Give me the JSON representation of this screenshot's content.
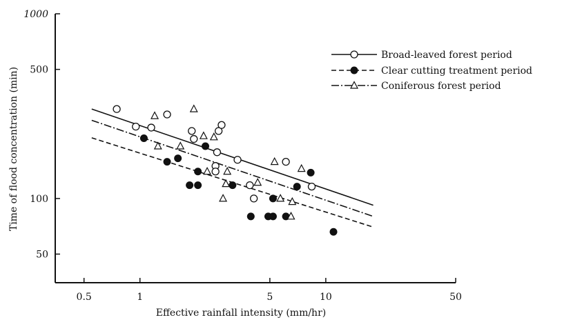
{
  "chart_data": {
    "type": "scatter",
    "title": "",
    "xlabel": "Effective rainfall intensity (mm/hr)",
    "ylabel": "Time of flood concentration (min)",
    "xscale": "log",
    "yscale": "log",
    "xlim": [
      0.35,
      50
    ],
    "ylim": [
      35,
      1000
    ],
    "xticks": [
      0.5,
      1,
      5,
      10,
      50
    ],
    "xtick_labels": [
      "0.5",
      "1",
      "5",
      "10",
      "50"
    ],
    "yticks": [
      50,
      100,
      500,
      1000
    ],
    "ytick_labels": [
      "50",
      "100",
      "500",
      "1000"
    ],
    "grid": false,
    "legend_position": "top-right",
    "series": [
      {
        "name": "Broad-leaved forest period",
        "marker": "open-circle",
        "line": "solid",
        "fit": {
          "x": [
            0.55,
            18
          ],
          "y": [
            305,
            92
          ]
        },
        "points": [
          {
            "x": 0.75,
            "y": 305
          },
          {
            "x": 0.95,
            "y": 245
          },
          {
            "x": 1.15,
            "y": 242
          },
          {
            "x": 1.4,
            "y": 285
          },
          {
            "x": 1.9,
            "y": 232
          },
          {
            "x": 1.95,
            "y": 210
          },
          {
            "x": 2.65,
            "y": 232
          },
          {
            "x": 2.75,
            "y": 250
          },
          {
            "x": 2.6,
            "y": 178
          },
          {
            "x": 2.55,
            "y": 150
          },
          {
            "x": 2.55,
            "y": 140
          },
          {
            "x": 3.35,
            "y": 162
          },
          {
            "x": 3.9,
            "y": 118
          },
          {
            "x": 4.1,
            "y": 100
          },
          {
            "x": 6.1,
            "y": 158
          },
          {
            "x": 8.4,
            "y": 116
          }
        ]
      },
      {
        "name": "Clear cutting treatment period",
        "marker": "filled-circle",
        "line": "dashed",
        "fit": {
          "x": [
            0.55,
            18
          ],
          "y": [
            213,
            70
          ]
        },
        "points": [
          {
            "x": 1.05,
            "y": 212
          },
          {
            "x": 1.4,
            "y": 158
          },
          {
            "x": 1.6,
            "y": 165
          },
          {
            "x": 1.85,
            "y": 118
          },
          {
            "x": 2.05,
            "y": 140
          },
          {
            "x": 2.05,
            "y": 118
          },
          {
            "x": 2.25,
            "y": 192
          },
          {
            "x": 3.15,
            "y": 118
          },
          {
            "x": 3.95,
            "y": 80
          },
          {
            "x": 4.9,
            "y": 80
          },
          {
            "x": 5.2,
            "y": 80
          },
          {
            "x": 5.2,
            "y": 100
          },
          {
            "x": 6.1,
            "y": 80
          },
          {
            "x": 7.0,
            "y": 116
          },
          {
            "x": 8.3,
            "y": 138
          },
          {
            "x": 11.0,
            "y": 66
          }
        ]
      },
      {
        "name": "Coniferous forest period",
        "marker": "open-triangle",
        "line": "dash-dot",
        "fit": {
          "x": [
            0.55,
            18
          ],
          "y": [
            265,
            80
          ]
        },
        "points": [
          {
            "x": 1.2,
            "y": 280
          },
          {
            "x": 1.25,
            "y": 192
          },
          {
            "x": 1.65,
            "y": 192
          },
          {
            "x": 1.95,
            "y": 305
          },
          {
            "x": 2.2,
            "y": 218
          },
          {
            "x": 2.3,
            "y": 140
          },
          {
            "x": 2.5,
            "y": 215
          },
          {
            "x": 2.95,
            "y": 140
          },
          {
            "x": 2.9,
            "y": 120
          },
          {
            "x": 2.8,
            "y": 100
          },
          {
            "x": 4.3,
            "y": 122
          },
          {
            "x": 5.3,
            "y": 158
          },
          {
            "x": 5.7,
            "y": 100
          },
          {
            "x": 6.6,
            "y": 96
          },
          {
            "x": 6.5,
            "y": 80
          },
          {
            "x": 7.4,
            "y": 145
          }
        ]
      }
    ]
  }
}
